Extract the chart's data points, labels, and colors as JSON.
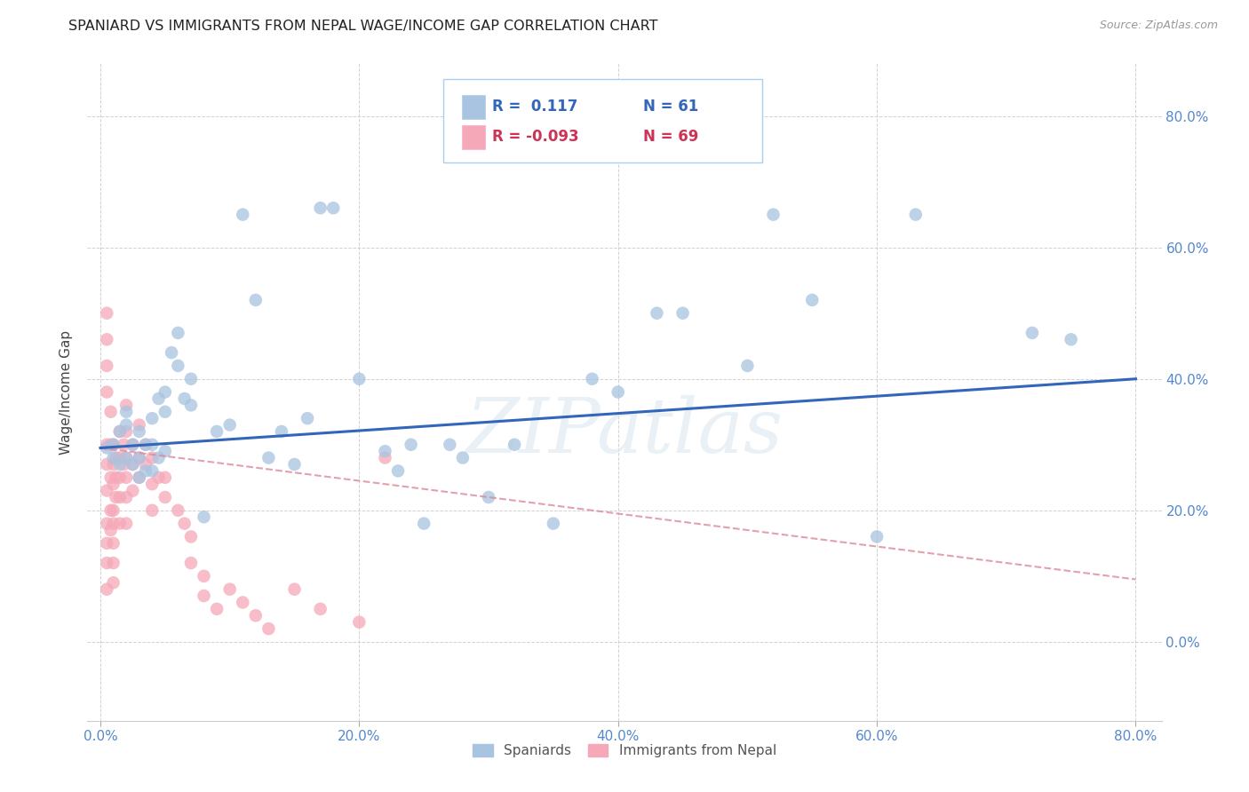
{
  "title": "SPANIARD VS IMMIGRANTS FROM NEPAL WAGE/INCOME GAP CORRELATION CHART",
  "source": "Source: ZipAtlas.com",
  "ylabel": "Wage/Income Gap",
  "xlim": [
    -0.01,
    0.82
  ],
  "ylim": [
    -0.12,
    0.88
  ],
  "ytick_values": [
    0.0,
    0.2,
    0.4,
    0.6,
    0.8
  ],
  "xtick_values": [
    0.0,
    0.2,
    0.4,
    0.6,
    0.8
  ],
  "spaniards_color": "#a8c4e0",
  "nepal_color": "#f5a8b8",
  "spaniards_label": "Spaniards",
  "nepal_label": "Immigrants from Nepal",
  "blue_line_start_x": 0.0,
  "blue_line_start_y": 0.295,
  "blue_line_end_x": 0.8,
  "blue_line_end_y": 0.4,
  "pink_line_start_x": 0.0,
  "pink_line_start_y": 0.295,
  "pink_line_end_x": 0.8,
  "pink_line_end_y": 0.095,
  "watermark_text": "ZIPatlas",
  "legend_R1": "R =  0.117",
  "legend_N1": "N = 61",
  "legend_R2": "R = -0.093",
  "legend_N2": "N = 69",
  "spaniards_x": [
    0.005,
    0.01,
    0.01,
    0.015,
    0.015,
    0.02,
    0.02,
    0.02,
    0.025,
    0.025,
    0.03,
    0.03,
    0.03,
    0.035,
    0.035,
    0.04,
    0.04,
    0.04,
    0.045,
    0.045,
    0.05,
    0.05,
    0.05,
    0.055,
    0.06,
    0.06,
    0.065,
    0.07,
    0.07,
    0.08,
    0.09,
    0.1,
    0.11,
    0.12,
    0.13,
    0.14,
    0.15,
    0.16,
    0.17,
    0.18,
    0.2,
    0.22,
    0.23,
    0.24,
    0.25,
    0.27,
    0.28,
    0.3,
    0.32,
    0.35,
    0.38,
    0.4,
    0.43,
    0.45,
    0.5,
    0.52,
    0.55,
    0.6,
    0.63,
    0.72,
    0.75
  ],
  "spaniards_y": [
    0.295,
    0.3,
    0.28,
    0.32,
    0.27,
    0.33,
    0.35,
    0.28,
    0.3,
    0.27,
    0.32,
    0.28,
    0.25,
    0.3,
    0.26,
    0.34,
    0.3,
    0.26,
    0.37,
    0.28,
    0.38,
    0.35,
    0.29,
    0.44,
    0.42,
    0.47,
    0.37,
    0.4,
    0.36,
    0.19,
    0.32,
    0.33,
    0.65,
    0.52,
    0.28,
    0.32,
    0.27,
    0.34,
    0.66,
    0.66,
    0.4,
    0.29,
    0.26,
    0.3,
    0.18,
    0.3,
    0.28,
    0.22,
    0.3,
    0.18,
    0.4,
    0.38,
    0.5,
    0.5,
    0.42,
    0.65,
    0.52,
    0.16,
    0.65,
    0.47,
    0.46
  ],
  "nepal_x": [
    0.005,
    0.005,
    0.005,
    0.005,
    0.005,
    0.005,
    0.005,
    0.005,
    0.005,
    0.005,
    0.005,
    0.008,
    0.008,
    0.008,
    0.008,
    0.008,
    0.01,
    0.01,
    0.01,
    0.01,
    0.01,
    0.01,
    0.01,
    0.01,
    0.012,
    0.012,
    0.012,
    0.015,
    0.015,
    0.015,
    0.015,
    0.015,
    0.018,
    0.018,
    0.02,
    0.02,
    0.02,
    0.02,
    0.02,
    0.02,
    0.025,
    0.025,
    0.025,
    0.03,
    0.03,
    0.03,
    0.035,
    0.035,
    0.04,
    0.04,
    0.04,
    0.045,
    0.05,
    0.05,
    0.06,
    0.065,
    0.07,
    0.07,
    0.08,
    0.08,
    0.09,
    0.1,
    0.11,
    0.12,
    0.13,
    0.15,
    0.17,
    0.2,
    0.22
  ],
  "nepal_y": [
    0.5,
    0.46,
    0.42,
    0.38,
    0.3,
    0.27,
    0.23,
    0.18,
    0.15,
    0.12,
    0.08,
    0.35,
    0.3,
    0.25,
    0.2,
    0.17,
    0.3,
    0.27,
    0.24,
    0.2,
    0.18,
    0.15,
    0.12,
    0.09,
    0.28,
    0.25,
    0.22,
    0.32,
    0.28,
    0.25,
    0.22,
    0.18,
    0.3,
    0.27,
    0.36,
    0.32,
    0.28,
    0.25,
    0.22,
    0.18,
    0.3,
    0.27,
    0.23,
    0.33,
    0.28,
    0.25,
    0.3,
    0.27,
    0.28,
    0.24,
    0.2,
    0.25,
    0.25,
    0.22,
    0.2,
    0.18,
    0.16,
    0.12,
    0.1,
    0.07,
    0.05,
    0.08,
    0.06,
    0.04,
    0.02,
    0.08,
    0.05,
    0.03,
    0.28
  ]
}
